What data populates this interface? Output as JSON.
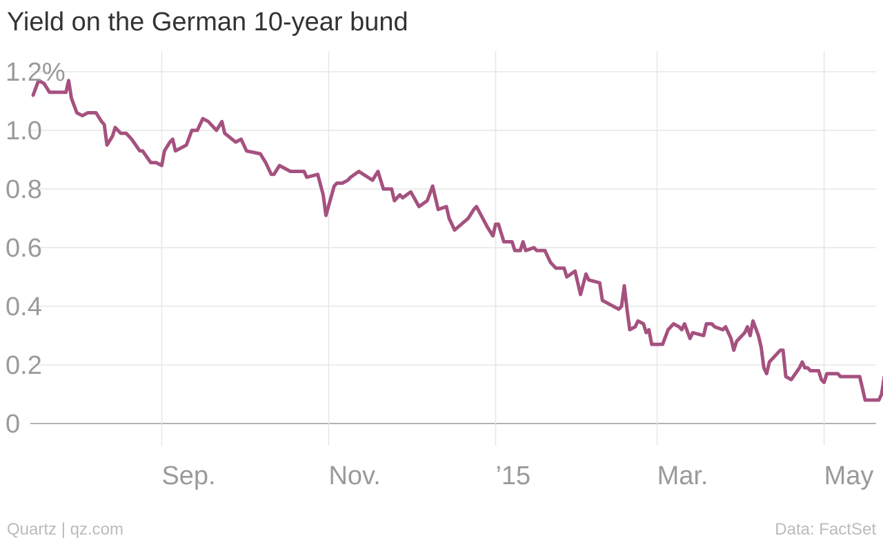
{
  "chart_data": {
    "type": "line",
    "title": "Yield on the German 10-year bund",
    "xlabel": "",
    "ylabel": "",
    "ylim": [
      0,
      1.2
    ],
    "xlim": [
      "2014-07-15",
      "2015-05-20"
    ],
    "grid": true,
    "colors": {
      "series": "#a5517f",
      "grid": "#e6e6e6",
      "baseline": "#999999"
    },
    "y_ticks": [
      {
        "value": 0,
        "label": "0"
      },
      {
        "value": 0.2,
        "label": "0.2"
      },
      {
        "value": 0.4,
        "label": "0.4"
      },
      {
        "value": 0.6,
        "label": "0.6"
      },
      {
        "value": 0.8,
        "label": "0.8"
      },
      {
        "value": 1.0,
        "label": "1.0"
      },
      {
        "value": 1.2,
        "label": "1.2%"
      }
    ],
    "x_ticks": [
      {
        "date": "2014-09-01",
        "label": "Sep."
      },
      {
        "date": "2014-11-01",
        "label": "Nov."
      },
      {
        "date": "2015-01-01",
        "label": "’15"
      },
      {
        "date": "2015-03-01",
        "label": "Mar."
      },
      {
        "date": "2015-05-01",
        "label": "May"
      }
    ],
    "series": [
      {
        "points": [
          [
            "2014-07-16",
            1.12
          ],
          [
            "2014-07-18",
            1.17
          ],
          [
            "2014-07-20",
            1.16
          ],
          [
            "2014-07-22",
            1.13
          ],
          [
            "2014-07-26",
            1.13
          ],
          [
            "2014-07-28",
            1.13
          ],
          [
            "2014-07-29",
            1.17
          ],
          [
            "2014-07-30",
            1.11
          ],
          [
            "2014-08-01",
            1.06
          ],
          [
            "2014-08-03",
            1.05
          ],
          [
            "2014-08-05",
            1.06
          ],
          [
            "2014-08-08",
            1.06
          ],
          [
            "2014-08-10",
            1.03
          ],
          [
            "2014-08-11",
            1.02
          ],
          [
            "2014-08-12",
            0.95
          ],
          [
            "2014-08-14",
            0.98
          ],
          [
            "2014-08-15",
            1.01
          ],
          [
            "2014-08-17",
            0.99
          ],
          [
            "2014-08-19",
            0.99
          ],
          [
            "2014-08-21",
            0.97
          ],
          [
            "2014-08-24",
            0.93
          ],
          [
            "2014-08-25",
            0.93
          ],
          [
            "2014-08-28",
            0.89
          ],
          [
            "2014-08-30",
            0.89
          ],
          [
            "2014-09-01",
            0.88
          ],
          [
            "2014-09-02",
            0.93
          ],
          [
            "2014-09-04",
            0.96
          ],
          [
            "2014-09-05",
            0.97
          ],
          [
            "2014-09-06",
            0.93
          ],
          [
            "2014-09-10",
            0.95
          ],
          [
            "2014-09-12",
            1.0
          ],
          [
            "2014-09-14",
            1.0
          ],
          [
            "2014-09-16",
            1.04
          ],
          [
            "2014-09-18",
            1.03
          ],
          [
            "2014-09-21",
            1.0
          ],
          [
            "2014-09-23",
            1.03
          ],
          [
            "2014-09-24",
            0.99
          ],
          [
            "2014-09-28",
            0.96
          ],
          [
            "2014-09-30",
            0.97
          ],
          [
            "2014-10-02",
            0.93
          ],
          [
            "2014-10-07",
            0.92
          ],
          [
            "2014-10-09",
            0.89
          ],
          [
            "2014-10-11",
            0.85
          ],
          [
            "2014-10-12",
            0.85
          ],
          [
            "2014-10-14",
            0.88
          ],
          [
            "2014-10-18",
            0.86
          ],
          [
            "2014-10-23",
            0.86
          ],
          [
            "2014-10-24",
            0.84
          ],
          [
            "2014-10-28",
            0.85
          ],
          [
            "2014-10-30",
            0.78
          ],
          [
            "2014-10-31",
            0.71
          ],
          [
            "2014-11-03",
            0.81
          ],
          [
            "2014-11-04",
            0.82
          ],
          [
            "2014-11-06",
            0.82
          ],
          [
            "2014-11-08",
            0.83
          ],
          [
            "2014-11-09",
            0.84
          ],
          [
            "2014-11-12",
            0.86
          ],
          [
            "2014-11-17",
            0.83
          ],
          [
            "2014-11-19",
            0.86
          ],
          [
            "2014-11-21",
            0.8
          ],
          [
            "2014-11-24",
            0.8
          ],
          [
            "2014-11-25",
            0.76
          ],
          [
            "2014-11-27",
            0.78
          ],
          [
            "2014-11-28",
            0.77
          ],
          [
            "2014-12-01",
            0.79
          ],
          [
            "2014-12-04",
            0.74
          ],
          [
            "2014-12-07",
            0.76
          ],
          [
            "2014-12-09",
            0.81
          ],
          [
            "2014-12-11",
            0.73
          ],
          [
            "2014-12-14",
            0.74
          ],
          [
            "2014-12-15",
            0.7
          ],
          [
            "2014-12-17",
            0.66
          ],
          [
            "2014-12-22",
            0.7
          ],
          [
            "2014-12-24",
            0.73
          ],
          [
            "2014-12-25",
            0.74
          ],
          [
            "2014-12-29",
            0.67
          ],
          [
            "2014-12-31",
            0.64
          ],
          [
            "2015-01-01",
            0.68
          ],
          [
            "2015-01-02",
            0.68
          ],
          [
            "2015-01-04",
            0.62
          ],
          [
            "2015-01-07",
            0.62
          ],
          [
            "2015-01-08",
            0.59
          ],
          [
            "2015-01-10",
            0.59
          ],
          [
            "2015-01-11",
            0.62
          ],
          [
            "2015-01-12",
            0.59
          ],
          [
            "2015-01-15",
            0.6
          ],
          [
            "2015-01-16",
            0.59
          ],
          [
            "2015-01-19",
            0.59
          ],
          [
            "2015-01-21",
            0.55
          ],
          [
            "2015-01-23",
            0.53
          ],
          [
            "2015-01-26",
            0.53
          ],
          [
            "2015-01-27",
            0.5
          ],
          [
            "2015-01-30",
            0.52
          ],
          [
            "2015-02-01",
            0.44
          ],
          [
            "2015-02-03",
            0.51
          ],
          [
            "2015-02-04",
            0.49
          ],
          [
            "2015-02-08",
            0.48
          ],
          [
            "2015-02-09",
            0.42
          ],
          [
            "2015-02-11",
            0.41
          ],
          [
            "2015-02-15",
            0.39
          ],
          [
            "2015-02-16",
            0.4
          ],
          [
            "2015-02-17",
            0.47
          ],
          [
            "2015-02-18",
            0.39
          ],
          [
            "2015-02-19",
            0.32
          ],
          [
            "2015-02-21",
            0.33
          ],
          [
            "2015-02-22",
            0.35
          ],
          [
            "2015-02-24",
            0.34
          ],
          [
            "2015-02-25",
            0.31
          ],
          [
            "2015-02-26",
            0.32
          ],
          [
            "2015-02-27",
            0.27
          ],
          [
            "2015-03-03",
            0.27
          ],
          [
            "2015-03-05",
            0.32
          ],
          [
            "2015-03-07",
            0.34
          ],
          [
            "2015-03-09",
            0.33
          ],
          [
            "2015-03-10",
            0.32
          ],
          [
            "2015-03-11",
            0.34
          ],
          [
            "2015-03-13",
            0.29
          ],
          [
            "2015-03-14",
            0.31
          ],
          [
            "2015-03-18",
            0.3
          ],
          [
            "2015-03-19",
            0.34
          ],
          [
            "2015-03-21",
            0.34
          ],
          [
            "2015-03-22",
            0.33
          ],
          [
            "2015-03-25",
            0.32
          ],
          [
            "2015-03-26",
            0.33
          ],
          [
            "2015-03-28",
            0.29
          ],
          [
            "2015-03-29",
            0.25
          ],
          [
            "2015-03-30",
            0.28
          ],
          [
            "2015-04-02",
            0.31
          ],
          [
            "2015-04-03",
            0.33
          ],
          [
            "2015-04-04",
            0.3
          ],
          [
            "2015-04-05",
            0.35
          ],
          [
            "2015-04-07",
            0.3
          ],
          [
            "2015-04-08",
            0.26
          ],
          [
            "2015-04-09",
            0.19
          ],
          [
            "2015-04-10",
            0.17
          ],
          [
            "2015-04-11",
            0.21
          ],
          [
            "2015-04-15",
            0.25
          ],
          [
            "2015-04-16",
            0.25
          ],
          [
            "2015-04-17",
            0.16
          ],
          [
            "2015-04-19",
            0.15
          ],
          [
            "2015-04-22",
            0.19
          ],
          [
            "2015-04-23",
            0.21
          ],
          [
            "2015-04-24",
            0.19
          ],
          [
            "2015-04-25",
            0.19
          ],
          [
            "2015-04-26",
            0.18
          ],
          [
            "2015-04-29",
            0.18
          ],
          [
            "2015-04-30",
            0.15
          ],
          [
            "2015-05-01",
            0.14
          ],
          [
            "2015-05-02",
            0.17
          ],
          [
            "2015-05-06",
            0.17
          ],
          [
            "2015-05-07",
            0.16
          ],
          [
            "2015-05-12",
            0.16
          ],
          [
            "2015-05-14",
            0.16
          ],
          [
            "2015-05-15",
            0.12
          ],
          [
            "2015-05-16",
            0.08
          ],
          [
            "2015-05-21",
            0.08
          ],
          [
            "2015-05-22",
            0.1
          ],
          [
            "2015-05-23",
            0.16
          ],
          [
            "2015-05-30",
            0.16
          ],
          [
            "2015-05-31",
            0.16
          ]
        ]
      }
    ]
  },
  "footer": {
    "source_left": "Quartz | qz.com",
    "source_right": "Data: FactSet"
  }
}
